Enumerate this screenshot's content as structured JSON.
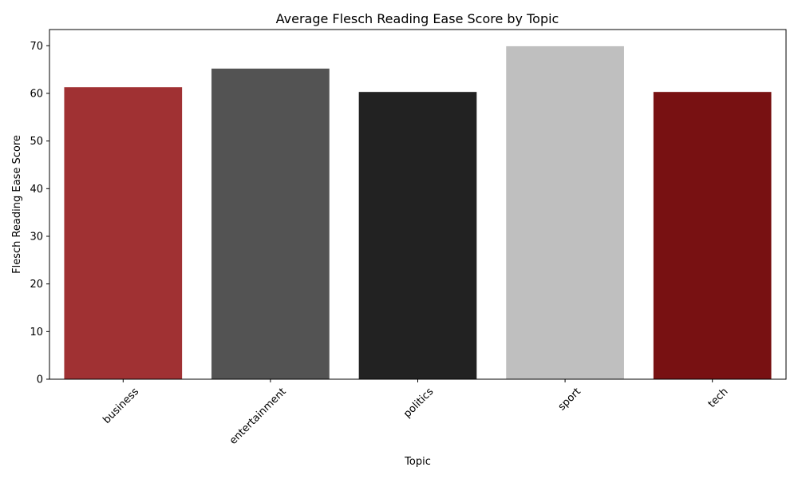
{
  "chart_data": {
    "type": "bar",
    "title": "Average Flesch Reading Ease Score by Topic",
    "xlabel": "Topic",
    "ylabel": "Flesch Reading Ease Score",
    "categories": [
      "business",
      "entertainment",
      "politics",
      "sport",
      "tech"
    ],
    "values": [
      61.3,
      65.2,
      60.3,
      69.9,
      60.3
    ],
    "colors": [
      "#a03133",
      "#535353",
      "#222222",
      "#bfbfbf",
      "#781112"
    ],
    "ylim": [
      0,
      73.4
    ],
    "yticks": [
      0,
      10,
      20,
      30,
      40,
      50,
      60,
      70
    ],
    "grid": false,
    "legend": "none",
    "xtick_rotation": 45
  }
}
